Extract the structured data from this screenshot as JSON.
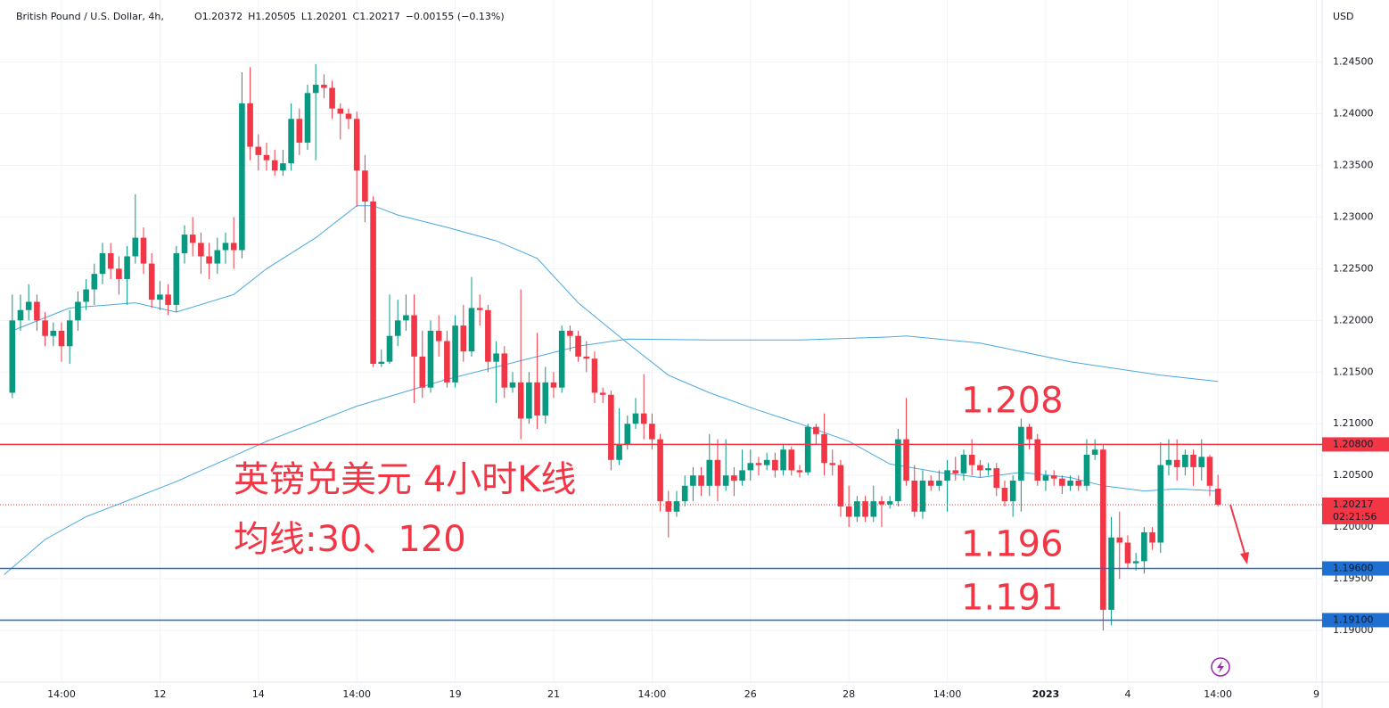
{
  "chart_data": {
    "type": "candlestick",
    "title": "British Pound / U.S. Dollar, 4h,",
    "ohlc_legend": [
      "O1.20372",
      "H1.20505",
      "L1.20201",
      "C1.20217",
      "−0.00155 (−0.13%)"
    ],
    "y_unit": "USD",
    "annotations": [
      "1.208",
      "1.196",
      "1.191"
    ],
    "notes": [
      "英镑兑美元 4小时K线",
      "均线:30、120"
    ],
    "up_color": "#089981",
    "down_color": "#f23645",
    "grid": true,
    "xlim": [
      -1.5,
      159.7
    ],
    "ylim": [
      1.185,
      1.251
    ],
    "xticks": [
      {
        "value": 6,
        "label": "14:00"
      },
      {
        "value": 18,
        "label": "12"
      },
      {
        "value": 30,
        "label": "14"
      },
      {
        "value": 42,
        "label": "14:00"
      },
      {
        "value": 54,
        "label": "19"
      },
      {
        "value": 66,
        "label": "21"
      },
      {
        "value": 78,
        "label": "14:00"
      },
      {
        "value": 90,
        "label": "26"
      },
      {
        "value": 102,
        "label": "28"
      },
      {
        "value": 114,
        "label": "14:00"
      },
      {
        "value": 126,
        "label": "2023"
      },
      {
        "value": 136,
        "label": "4"
      },
      {
        "value": 147,
        "label": "14:00"
      },
      {
        "value": 159,
        "label": "9"
      }
    ],
    "yticks": [
      {
        "value": 1.19,
        "label": "1.19000"
      },
      {
        "value": 1.195,
        "label": "1.19500"
      },
      {
        "value": 1.2,
        "label": "1.20000"
      },
      {
        "value": 1.205,
        "label": "1.20500"
      },
      {
        "value": 1.21,
        "label": "1.21000"
      },
      {
        "value": 1.215,
        "label": "1.21500"
      },
      {
        "value": 1.22,
        "label": "1.22000"
      },
      {
        "value": 1.225,
        "label": "1.22500"
      },
      {
        "value": 1.23,
        "label": "1.23000"
      },
      {
        "value": 1.235,
        "label": "1.23500"
      },
      {
        "value": 1.24,
        "label": "1.24000"
      },
      {
        "value": 1.245,
        "label": "1.24500"
      }
    ],
    "hlines": [
      {
        "value": 1.208,
        "label": "1.20800",
        "color": "#f23645"
      },
      {
        "value": 1.196,
        "label": "1.19600",
        "color": "#1e6fd0"
      },
      {
        "value": 1.191,
        "label": "1.19100",
        "color": "#1e6fd0"
      }
    ],
    "last_price": 1.20217,
    "countdown": "02:21:56",
    "open": [
      1.213,
      1.22,
      1.221,
      1.2218,
      1.22,
      1.2185,
      1.219,
      1.2175,
      1.22,
      1.2218,
      1.223,
      1.2245,
      1.2265,
      1.225,
      1.224,
      1.2262,
      1.228,
      1.2255,
      1.222,
      1.2225,
      1.2215,
      1.2265,
      1.2283,
      1.2275,
      1.2262,
      1.2255,
      1.2268,
      1.2275,
      1.2268,
      1.241,
      1.2368,
      1.236,
      1.2355,
      1.2345,
      1.2352,
      1.2395,
      1.2372,
      1.242,
      1.2428,
      1.2425,
      1.2405,
      1.24,
      1.2395,
      1.2345,
      1.2315,
      1.2158,
      1.216,
      1.2185,
      1.22,
      1.2205,
      1.2165,
      1.2135,
      1.219,
      1.218,
      1.214,
      1.2195,
      1.217,
      1.2212,
      1.221,
      1.216,
      1.2168,
      1.2135,
      1.214,
      1.2105,
      1.214,
      1.2108,
      1.214,
      1.2135,
      1.219,
      1.2185,
      1.2165,
      1.2163,
      1.213,
      1.2128,
      1.2065,
      1.208,
      1.21,
      1.211,
      1.21,
      1.2085,
      1.2025,
      1.2015,
      1.2025,
      1.204,
      1.205,
      1.204,
      1.2065,
      1.204,
      1.205,
      1.2045,
      1.2055,
      1.2062,
      1.206,
      1.2065,
      1.2055,
      1.2075,
      1.2055,
      1.2053,
      1.2097,
      1.209,
      1.2062,
      1.206,
      1.202,
      1.201,
      1.2025,
      1.201,
      1.2025,
      1.2022,
      1.2025,
      1.2085,
      1.2045,
      1.2015,
      1.2045,
      1.204,
      1.2045,
      1.2055,
      1.2052,
      1.207,
      1.206,
      1.2055,
      1.2057,
      1.2038,
      1.2025,
      1.2045,
      1.2097,
      1.2085,
      1.2045,
      1.205,
      1.2047,
      1.204,
      1.2045,
      1.204,
      1.207,
      1.2075,
      1.192,
      1.199,
      1.1985,
      1.1965,
      1.1967,
      1.1995,
      1.1985,
      1.206,
      1.2065,
      1.2058,
      1.207,
      1.2058,
      1.2068,
      1.20372
    ],
    "high": [
      1.2225,
      1.2225,
      1.2235,
      1.2225,
      1.2208,
      1.2198,
      1.2198,
      1.221,
      1.2228,
      1.224,
      1.2255,
      1.2275,
      1.2275,
      1.2262,
      1.2272,
      1.2322,
      1.229,
      1.2265,
      1.2238,
      1.2235,
      1.2272,
      1.2292,
      1.23,
      1.2285,
      1.2275,
      1.228,
      1.2285,
      1.23,
      1.244,
      1.2445,
      1.238,
      1.2372,
      1.2365,
      1.2365,
      1.241,
      1.2405,
      1.2428,
      1.2448,
      1.2438,
      1.2432,
      1.241,
      1.2405,
      1.2402,
      1.236,
      1.232,
      1.2172,
      1.2225,
      1.222,
      1.2225,
      1.2225,
      1.219,
      1.22,
      1.2205,
      1.219,
      1.2205,
      1.2215,
      1.2242,
      1.2225,
      1.2215,
      1.218,
      1.2175,
      1.215,
      1.223,
      1.215,
      1.2188,
      1.2155,
      1.215,
      1.2195,
      1.2195,
      1.219,
      1.218,
      1.217,
      1.2135,
      1.2132,
      1.2115,
      1.2108,
      1.2125,
      1.2148,
      1.211,
      1.209,
      1.2035,
      1.2035,
      1.205,
      1.2058,
      1.2058,
      1.209,
      1.2085,
      1.2085,
      1.2058,
      1.2075,
      1.2075,
      1.2068,
      1.2072,
      1.2072,
      1.208,
      1.2078,
      1.206,
      1.21,
      1.21,
      1.211,
      1.2075,
      1.2065,
      1.204,
      1.203,
      1.203,
      1.204,
      1.203,
      1.203,
      1.2095,
      1.2125,
      1.206,
      1.2055,
      1.205,
      1.2055,
      1.2065,
      1.2068,
      1.2075,
      1.2085,
      1.2065,
      1.2062,
      1.2062,
      1.2045,
      1.205,
      1.2105,
      1.21,
      1.209,
      1.2055,
      1.2055,
      1.205,
      1.205,
      1.205,
      1.2085,
      1.2085,
      1.208,
      1.201,
      1.2015,
      1.1992,
      1.1975,
      1.2,
      1.2,
      1.2082,
      1.2085,
      1.2085,
      1.2075,
      1.2075,
      1.2085,
      1.207,
      1.20505
    ],
    "low": [
      1.2125,
      1.219,
      1.22,
      1.219,
      1.2175,
      1.2175,
      1.216,
      1.2158,
      1.219,
      1.221,
      1.2215,
      1.2235,
      1.224,
      1.2225,
      1.2215,
      1.2255,
      1.2245,
      1.2212,
      1.221,
      1.2205,
      1.2208,
      1.2255,
      1.2262,
      1.2245,
      1.224,
      1.2245,
      1.2255,
      1.225,
      1.226,
      1.2355,
      1.2345,
      1.2345,
      1.234,
      1.234,
      1.2345,
      1.236,
      1.2365,
      1.2355,
      1.2415,
      1.2395,
      1.2375,
      1.2385,
      1.231,
      1.2295,
      1.2155,
      1.2155,
      1.2158,
      1.2175,
      1.219,
      1.212,
      1.2125,
      1.213,
      1.2165,
      1.2135,
      1.2135,
      1.216,
      1.2165,
      1.2195,
      1.215,
      1.212,
      1.2125,
      1.213,
      1.2085,
      1.21,
      1.2095,
      1.21,
      1.2125,
      1.213,
      1.217,
      1.216,
      1.215,
      1.212,
      1.212,
      1.2055,
      1.206,
      1.2075,
      1.2095,
      1.2085,
      1.2075,
      1.2015,
      1.199,
      1.201,
      1.202,
      1.2025,
      1.203,
      1.203,
      1.2025,
      1.2035,
      1.203,
      1.204,
      1.2045,
      1.205,
      1.2055,
      1.2048,
      1.205,
      1.205,
      1.2048,
      1.205,
      1.208,
      1.205,
      1.205,
      1.201,
      1.2,
      1.2005,
      1.2005,
      1.2005,
      1.2,
      1.2018,
      1.202,
      1.204,
      1.201,
      1.2008,
      1.2035,
      1.2035,
      1.2015,
      1.2045,
      1.2045,
      1.205,
      1.2048,
      1.205,
      1.203,
      1.202,
      1.201,
      1.2015,
      1.2075,
      1.204,
      1.2035,
      1.204,
      1.2032,
      1.2035,
      1.2035,
      1.2035,
      1.2065,
      1.19,
      1.1905,
      1.195,
      1.196,
      1.1958,
      1.1955,
      1.1978,
      1.1975,
      1.205,
      1.2045,
      1.205,
      1.204,
      1.2045,
      1.203,
      1.20201
    ],
    "close": [
      1.22,
      1.221,
      1.2218,
      1.22,
      1.2185,
      1.219,
      1.2175,
      1.22,
      1.2218,
      1.223,
      1.2245,
      1.2265,
      1.225,
      1.224,
      1.2262,
      1.228,
      1.2255,
      1.222,
      1.2225,
      1.2215,
      1.2265,
      1.2283,
      1.2275,
      1.2262,
      1.2255,
      1.2268,
      1.2275,
      1.2268,
      1.241,
      1.2368,
      1.236,
      1.2355,
      1.2345,
      1.2352,
      1.2395,
      1.2372,
      1.242,
      1.2428,
      1.2425,
      1.2405,
      1.24,
      1.2395,
      1.2345,
      1.2315,
      1.2158,
      1.216,
      1.2185,
      1.22,
      1.2205,
      1.2165,
      1.2135,
      1.219,
      1.218,
      1.214,
      1.2195,
      1.217,
      1.2212,
      1.221,
      1.216,
      1.2168,
      1.2135,
      1.214,
      1.2105,
      1.214,
      1.2108,
      1.214,
      1.2135,
      1.219,
      1.2185,
      1.2165,
      1.2163,
      1.213,
      1.2128,
      1.2065,
      1.208,
      1.21,
      1.211,
      1.21,
      1.2085,
      1.2025,
      1.2015,
      1.2025,
      1.204,
      1.205,
      1.204,
      1.2065,
      1.204,
      1.205,
      1.2045,
      1.2055,
      1.2062,
      1.206,
      1.2065,
      1.2055,
      1.2075,
      1.2055,
      1.2053,
      1.2097,
      1.209,
      1.2062,
      1.206,
      1.202,
      1.201,
      1.2025,
      1.201,
      1.2025,
      1.2022,
      1.2025,
      1.2085,
      1.2045,
      1.2015,
      1.2045,
      1.204,
      1.2045,
      1.2055,
      1.2052,
      1.207,
      1.206,
      1.2055,
      1.2057,
      1.2038,
      1.2025,
      1.2045,
      1.2097,
      1.2085,
      1.2045,
      1.205,
      1.2047,
      1.204,
      1.2045,
      1.204,
      1.207,
      1.2075,
      1.192,
      1.199,
      1.1985,
      1.1965,
      1.1967,
      1.1995,
      1.1985,
      1.206,
      1.2065,
      1.2058,
      1.207,
      1.2058,
      1.2068,
      1.204,
      1.20217
    ],
    "lines": [
      {
        "color": "#4aa8e0",
        "x": [
          0,
          7,
          15,
          20,
          27,
          31,
          37,
          42,
          44,
          47,
          53,
          59,
          64,
          69,
          75,
          80,
          85,
          91,
          96,
          102,
          107,
          113,
          118,
          123,
          129,
          133,
          138,
          142,
          147
        ],
        "values": [
          1.219,
          1.2212,
          1.2217,
          1.2208,
          1.2225,
          1.225,
          1.228,
          1.2311,
          1.2311,
          1.2302,
          1.229,
          1.2277,
          1.226,
          1.2217,
          1.2178,
          1.2147,
          1.213,
          1.2113,
          1.21,
          1.2083,
          1.2061,
          1.2053,
          1.2048,
          1.2053,
          1.2048,
          1.204,
          1.2035,
          1.2037,
          1.2035
        ]
      },
      {
        "color": "#4aa8e0",
        "x": [
          -1,
          4,
          9,
          20,
          31,
          42,
          53,
          64,
          69,
          75,
          85,
          96,
          107,
          109,
          118,
          129,
          140,
          147
        ],
        "values": [
          1.1954,
          1.1988,
          1.201,
          1.2044,
          1.2083,
          1.2117,
          1.2143,
          1.2165,
          1.2175,
          1.2182,
          1.2181,
          1.2181,
          1.2184,
          1.2185,
          1.2178,
          1.216,
          1.2147,
          1.2141
        ]
      }
    ]
  }
}
